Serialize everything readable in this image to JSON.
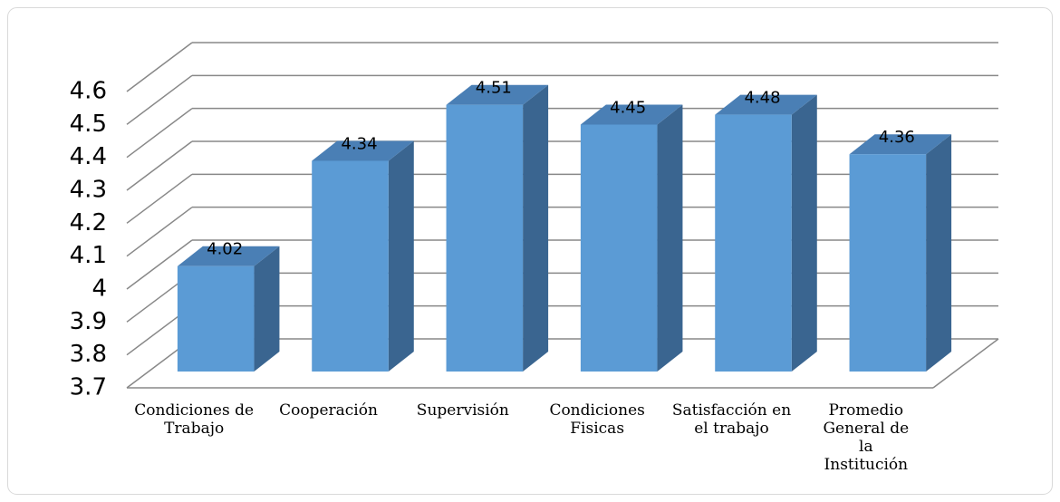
{
  "chart_data": {
    "type": "bar3d",
    "categories": [
      "Condiciones de Trabajo",
      "Cooperación",
      "Supervisión",
      "Condiciones Fisicas",
      "Satisfacción en el trabajo",
      "Promedio General de la Institución"
    ],
    "values": [
      4.02,
      4.34,
      4.51,
      4.45,
      4.48,
      4.36
    ],
    "color": "#5b9bd5",
    "ylim": [
      3.7,
      4.6
    ],
    "yticks": [
      3.7,
      3.8,
      3.9,
      4,
      4.1,
      4.2,
      4.3,
      4.4,
      4.5,
      4.6
    ],
    "grid": true
  }
}
